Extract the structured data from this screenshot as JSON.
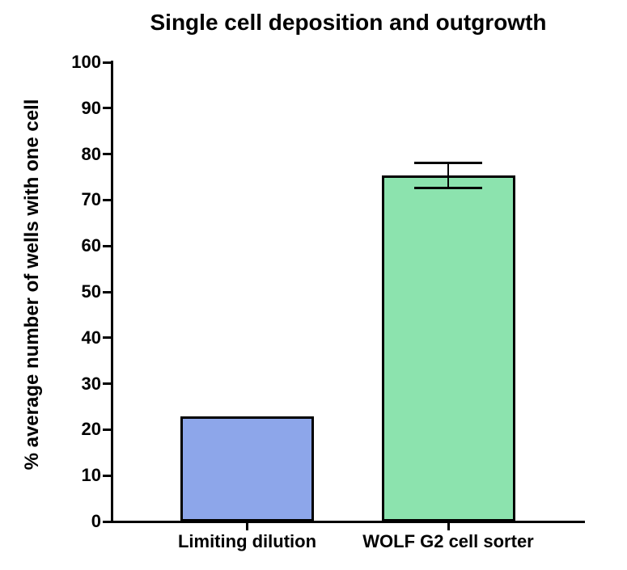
{
  "chart_data": {
    "type": "bar",
    "title": "Single cell deposition and outgrowth",
    "ylabel": "% average number of wells with one cell",
    "xlabel": "",
    "categories": [
      "Limiting dilution",
      "WOLF G2 cell sorter"
    ],
    "values": [
      22.8,
      75.4
    ],
    "errors": [
      null,
      2.7
    ],
    "bar_colors": [
      "#8DA6EA",
      "#8CE3AE"
    ],
    "bar_border_color": "#000000",
    "axis_color": "#000000",
    "text_color": "#000000",
    "background_color": "#FFFFFF",
    "ylim": [
      0,
      100
    ],
    "ytick_step": 10,
    "grid": false,
    "legend": null,
    "error_bar_style": "capped, symmetric, shown on second bar only"
  }
}
